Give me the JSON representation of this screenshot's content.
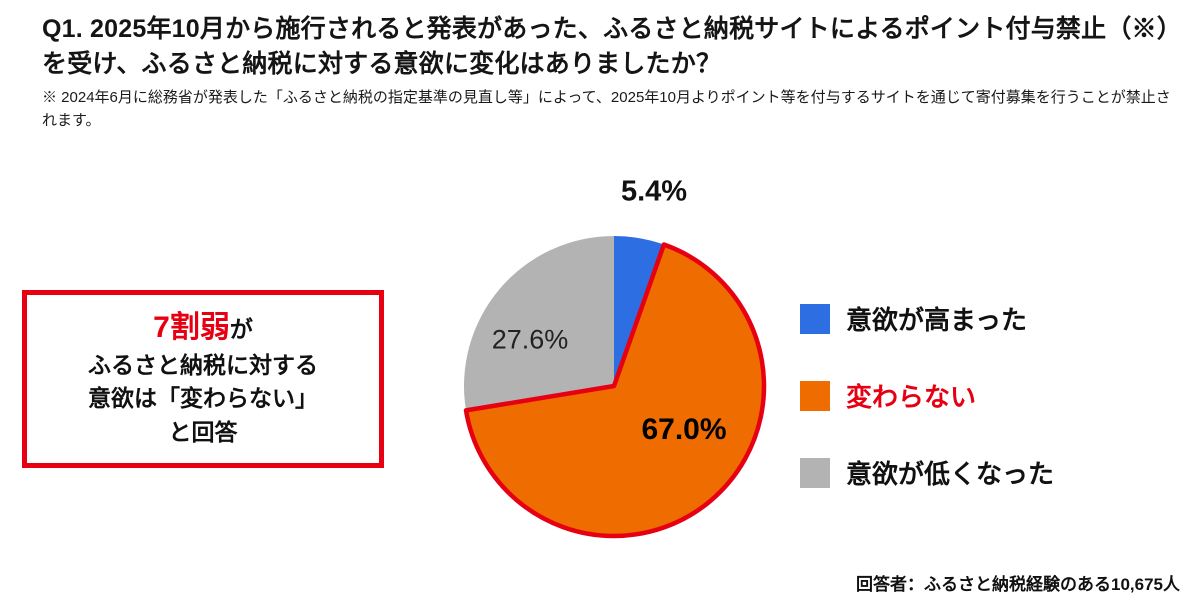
{
  "header": {
    "title": "Q1. 2025年10月から施行されると発表があった、ふるさと納税サイトによるポイント付与禁止（※）を受け、ふるさと納税に対する意欲に変化はありましたか？",
    "footnote": "※ 2024年6月に総務省が発表した「ふるさと納税の指定基準の見直し等」によって、2025年10月よりポイント等を付与するサイトを通じて寄付募集を行うことが禁止されます。"
  },
  "callout": {
    "highlight": "7割弱",
    "suffix": "が",
    "line2": "ふるさと納税に対する",
    "line3": "意欲は「変わらない」",
    "line4": "と回答"
  },
  "chart_data": {
    "type": "pie",
    "start_angle_deg": 0,
    "direction": "clockwise",
    "legend_position": "right",
    "unit": "%",
    "slices": [
      {
        "key": "increased",
        "label": "意欲が高まった",
        "value": 5.4,
        "display": "5.4%",
        "color": "#2d6fe3"
      },
      {
        "key": "unchanged",
        "label": "変わらない",
        "value": 67.0,
        "display": "67.0%",
        "color": "#ee6c00",
        "outline_color": "#e60012",
        "emphasized": true
      },
      {
        "key": "decreased",
        "label": "意欲が低くなった",
        "value": 27.6,
        "display": "27.6%",
        "color": "#b3b3b3"
      }
    ]
  },
  "footer": {
    "note": "回答者：ふるさと納税経験のある10,675人"
  },
  "colors": {
    "accent_red": "#e60012",
    "blue": "#2d6fe3",
    "orange": "#ee6c00",
    "gray": "#b3b3b3"
  }
}
